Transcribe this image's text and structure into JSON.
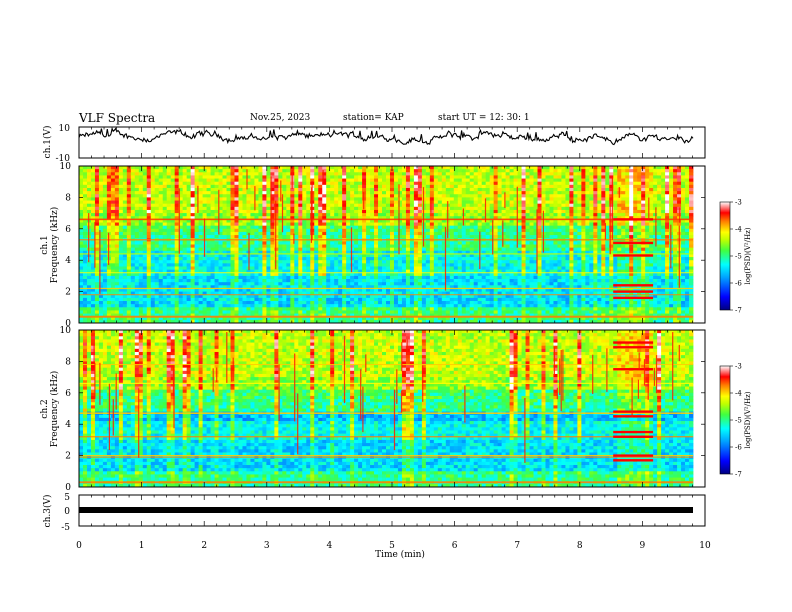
{
  "header": {
    "title": "VLF Spectra",
    "date": "Nov.25, 2023",
    "station": "station= KAP",
    "start": "start UT = 12: 30: 1"
  },
  "chart_data": [
    {
      "type": "line",
      "panel": "ch1-waveform",
      "ylabel": "ch.1(V)",
      "ylim": [
        -10,
        10
      ],
      "yticks": [
        "10",
        "-10"
      ],
      "xlim": [
        0,
        10
      ],
      "description_values": "noisy waveform fluctuating mostly between about 0 and 7 V"
    },
    {
      "type": "heatmap",
      "panel": "ch1-spectrogram",
      "ylabel": "ch.1 Frequency (kHz)",
      "ylim": [
        0,
        10
      ],
      "yticks": [
        "0",
        "2",
        "4",
        "6",
        "8",
        "10"
      ],
      "xlim": [
        0,
        10
      ],
      "colorbar": {
        "label": "log(PSD)(V²/Hz)",
        "ticks": [
          "-3",
          "-4",
          "-5",
          "-6",
          "-7"
        ],
        "range": [
          -7,
          -3
        ]
      }
    },
    {
      "type": "heatmap",
      "panel": "ch2-spectrogram",
      "ylabel": "ch.2 Frequency (kHz)",
      "ylim": [
        0,
        10
      ],
      "yticks": [
        "0",
        "2",
        "4",
        "6",
        "8",
        "10"
      ],
      "xlim": [
        0,
        10
      ],
      "colorbar": {
        "label": "log(PSD)(V²/Hz)",
        "ticks": [
          "-3",
          "-4",
          "-5",
          "-6",
          "-7"
        ],
        "range": [
          -7,
          -3
        ]
      }
    },
    {
      "type": "line",
      "panel": "ch3-waveform",
      "ylabel": "ch.3(V)",
      "ylim": [
        -5,
        5
      ],
      "yticks": [
        "5",
        "0",
        "-5"
      ],
      "xlim": [
        0,
        10
      ],
      "constant_value": -0.5
    }
  ],
  "xaxis": {
    "label": "Time (min)",
    "ticks": [
      "0",
      "1",
      "2",
      "3",
      "4",
      "5",
      "6",
      "7",
      "8",
      "9",
      "10"
    ]
  },
  "colors": {
    "scale": [
      "#00007f",
      "#0000ff",
      "#007fff",
      "#00ffff",
      "#7fff7f",
      "#ffff00",
      "#ff7f00",
      "#ff0000",
      "#ffffff"
    ]
  }
}
